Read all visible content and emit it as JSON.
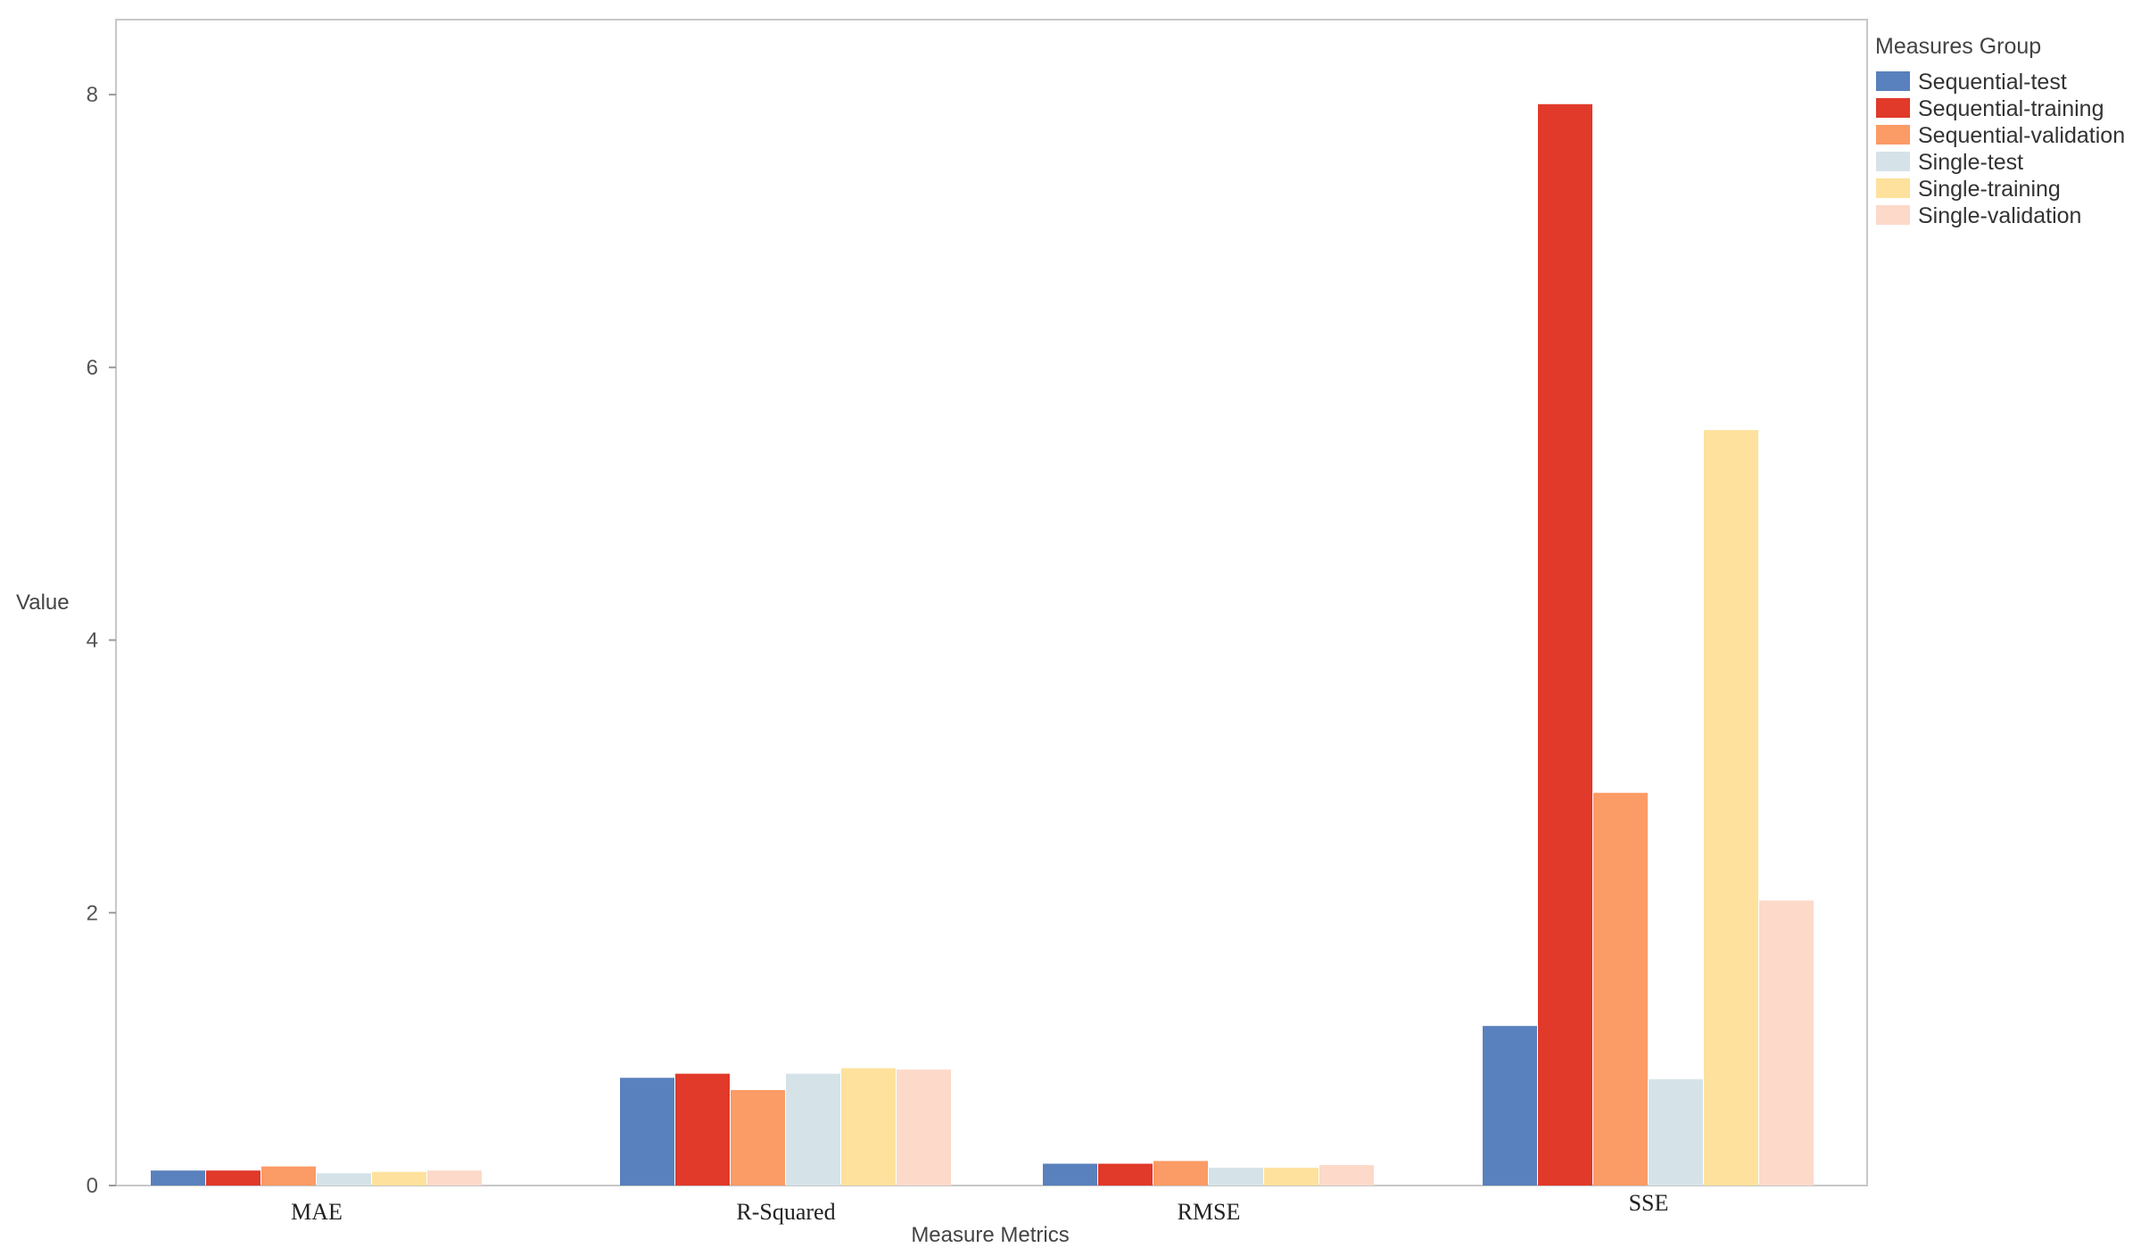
{
  "chart_data": {
    "type": "bar",
    "xlabel": "Measure Metrics",
    "ylabel": "Value",
    "ylim": [
      0,
      8.55
    ],
    "yticks": [
      0,
      2,
      4,
      6,
      8
    ],
    "grid": false,
    "legend_position": "right",
    "legend_title": "Measures Group",
    "categories": [
      "MAE",
      "R-Squared",
      "RMSE",
      "SSE"
    ],
    "series": [
      {
        "name": "Sequential-test",
        "color": "#5981bd",
        "values": [
          0.11,
          0.79,
          0.16,
          1.17
        ]
      },
      {
        "name": "Sequential-training",
        "color": "#e1392a",
        "values": [
          0.11,
          0.82,
          0.16,
          7.93
        ]
      },
      {
        "name": "Sequential-validation",
        "color": "#fb9b65",
        "values": [
          0.14,
          0.7,
          0.18,
          2.88
        ]
      },
      {
        "name": "Single-test",
        "color": "#d5e3e9",
        "values": [
          0.09,
          0.82,
          0.13,
          0.78
        ]
      },
      {
        "name": "Single-training",
        "color": "#fee19c",
        "values": [
          0.1,
          0.86,
          0.13,
          5.54
        ]
      },
      {
        "name": "Single-validation",
        "color": "#fdd9c9",
        "values": [
          0.11,
          0.85,
          0.15,
          2.09
        ]
      }
    ]
  }
}
